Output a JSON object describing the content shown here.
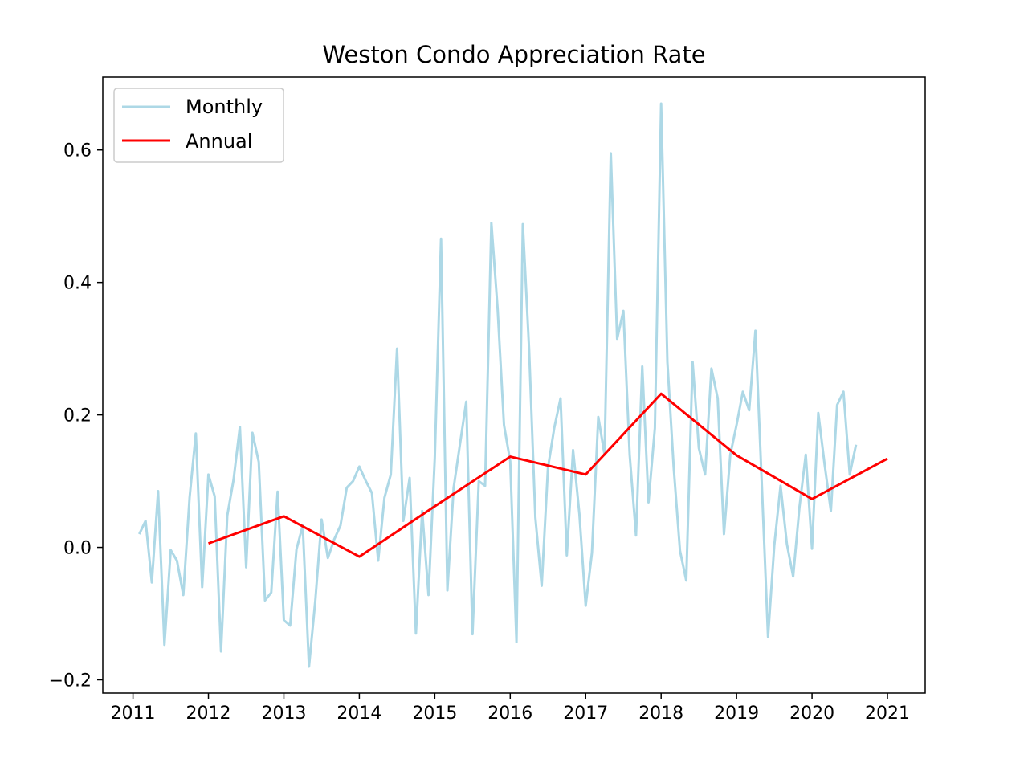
{
  "chart_data": {
    "type": "line",
    "title": "Weston Condo Appreciation Rate",
    "xlabel": "",
    "ylabel": "",
    "xlim": [
      2010.6,
      2021.5
    ],
    "ylim": [
      -0.22,
      0.71
    ],
    "xticks": [
      2011,
      2012,
      2013,
      2014,
      2015,
      2016,
      2017,
      2018,
      2019,
      2020,
      2021
    ],
    "xtick_labels": [
      "2011",
      "2012",
      "2013",
      "2014",
      "2015",
      "2016",
      "2017",
      "2018",
      "2019",
      "2020",
      "2021"
    ],
    "yticks": [
      -0.2,
      0.0,
      0.2,
      0.4,
      0.6
    ],
    "ytick_labels": [
      "−0.2",
      "0.0",
      "0.2",
      "0.4",
      "0.6"
    ],
    "grid": false,
    "legend_position": "top-left",
    "series": [
      {
        "name": "Monthly",
        "color": "#add8e6",
        "x": [
          2011.083,
          2011.167,
          2011.25,
          2011.333,
          2011.417,
          2011.5,
          2011.583,
          2011.667,
          2011.75,
          2011.833,
          2011.917,
          2012.0,
          2012.083,
          2012.167,
          2012.25,
          2012.333,
          2012.417,
          2012.5,
          2012.583,
          2012.667,
          2012.75,
          2012.833,
          2012.917,
          2013.0,
          2013.083,
          2013.167,
          2013.25,
          2013.333,
          2013.417,
          2013.5,
          2013.583,
          2013.667,
          2013.75,
          2013.833,
          2013.917,
          2014.0,
          2014.083,
          2014.167,
          2014.25,
          2014.333,
          2014.417,
          2014.5,
          2014.583,
          2014.667,
          2014.75,
          2014.833,
          2014.917,
          2015.0,
          2015.083,
          2015.167,
          2015.25,
          2015.333,
          2015.417,
          2015.5,
          2015.583,
          2015.667,
          2015.75,
          2015.833,
          2015.917,
          2016.0,
          2016.083,
          2016.167,
          2016.25,
          2016.333,
          2016.417,
          2016.5,
          2016.583,
          2016.667,
          2016.75,
          2016.833,
          2016.917,
          2017.0,
          2017.083,
          2017.167,
          2017.25,
          2017.333,
          2017.417,
          2017.5,
          2017.583,
          2017.667,
          2017.75,
          2017.833,
          2017.917,
          2018.0,
          2018.083,
          2018.167,
          2018.25,
          2018.333,
          2018.417,
          2018.5,
          2018.583,
          2018.667,
          2018.75,
          2018.833,
          2018.917,
          2019.0,
          2019.083,
          2019.167,
          2019.25,
          2019.333,
          2019.417,
          2019.5,
          2019.583,
          2019.667,
          2019.75,
          2019.833,
          2019.917,
          2020.0,
          2020.083,
          2020.167,
          2020.25,
          2020.333,
          2020.417,
          2020.5,
          2020.583
        ],
        "values": [
          0.02,
          0.04,
          -0.053,
          0.085,
          -0.147,
          -0.004,
          -0.02,
          -0.072,
          0.075,
          0.172,
          -0.06,
          0.11,
          0.077,
          -0.157,
          0.048,
          0.102,
          0.182,
          -0.03,
          0.173,
          0.129,
          -0.08,
          -0.068,
          0.084,
          -0.11,
          -0.118,
          -0.003,
          0.033,
          -0.18,
          -0.08,
          0.042,
          -0.016,
          0.012,
          0.033,
          0.09,
          0.1,
          0.122,
          0.101,
          0.082,
          -0.02,
          0.075,
          0.11,
          0.3,
          0.04,
          0.105,
          -0.13,
          0.055,
          -0.072,
          0.135,
          0.466,
          -0.065,
          0.09,
          0.155,
          0.22,
          -0.131,
          0.1,
          0.093,
          0.49,
          0.36,
          0.185,
          0.13,
          -0.143,
          0.488,
          0.3,
          0.045,
          -0.058,
          0.12,
          0.18,
          0.225,
          -0.012,
          0.147,
          0.05,
          -0.088,
          -0.008,
          0.197,
          0.14,
          0.595,
          0.315,
          0.357,
          0.14,
          0.018,
          0.273,
          0.068,
          0.18,
          0.67,
          0.28,
          0.12,
          -0.005,
          -0.05,
          0.28,
          0.15,
          0.11,
          0.27,
          0.225,
          0.02,
          0.14,
          0.185,
          0.235,
          0.207,
          0.327,
          0.1,
          -0.135,
          0.003,
          0.093,
          0.005,
          -0.044,
          0.06,
          0.14,
          -0.002,
          0.203,
          0.125,
          0.055,
          0.215,
          0.235,
          0.11,
          0.155
        ]
      },
      {
        "name": "Annual",
        "color": "#ff0000",
        "x": [
          2012,
          2013,
          2014,
          2015,
          2016,
          2017,
          2018,
          2019,
          2020,
          2021
        ],
        "values": [
          0.006,
          0.047,
          -0.014,
          0.062,
          0.137,
          0.11,
          0.232,
          0.139,
          0.073,
          0.134
        ]
      }
    ]
  }
}
